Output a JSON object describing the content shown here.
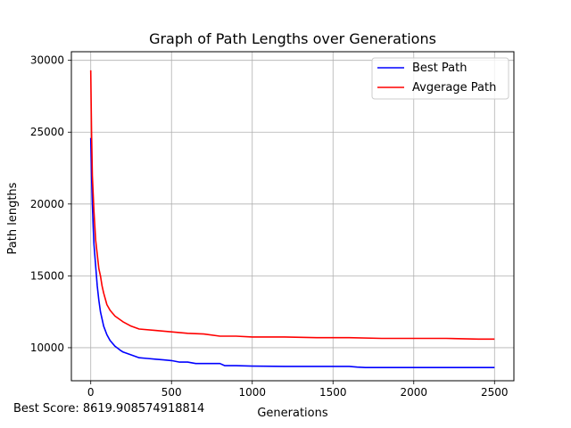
{
  "chart_data": {
    "type": "line",
    "title": "Graph of Path Lengths over Generations",
    "xlabel": "Generations",
    "ylabel": "Path lengths",
    "xlim": [
      -120,
      2620
    ],
    "ylim": [
      7700,
      30600
    ],
    "xticks": [
      0,
      500,
      1000,
      1500,
      2000,
      2500
    ],
    "yticks": [
      10000,
      15000,
      20000,
      25000,
      30000
    ],
    "grid": true,
    "legend_position": "top-right",
    "series": [
      {
        "name": "Best Path",
        "color": "#0000ff",
        "x": [
          0,
          5,
          10,
          15,
          20,
          30,
          40,
          50,
          60,
          80,
          100,
          120,
          150,
          180,
          200,
          250,
          300,
          350,
          400,
          450,
          500,
          550,
          600,
          650,
          700,
          750,
          800,
          830,
          900,
          1000,
          1200,
          1400,
          1600,
          1650,
          1700,
          2000,
          2500
        ],
        "y": [
          24600,
          22000,
          20000,
          18500,
          17200,
          15700,
          14300,
          13300,
          12500,
          11500,
          10900,
          10500,
          10100,
          9850,
          9700,
          9500,
          9300,
          9250,
          9200,
          9150,
          9100,
          9000,
          9000,
          8900,
          8900,
          8900,
          8900,
          8750,
          8750,
          8720,
          8700,
          8700,
          8700,
          8650,
          8620,
          8620,
          8620
        ]
      },
      {
        "name": "Avgerage Path",
        "color": "#ff0000",
        "x": [
          0,
          5,
          10,
          20,
          30,
          40,
          50,
          60,
          70,
          80,
          100,
          120,
          150,
          200,
          250,
          300,
          400,
          500,
          600,
          700,
          800,
          900,
          1000,
          1200,
          1400,
          1600,
          1800,
          2000,
          2200,
          2400,
          2500
        ],
        "y": [
          29300,
          25000,
          22000,
          19500,
          17500,
          16500,
          15500,
          15000,
          14300,
          13800,
          13000,
          12600,
          12200,
          11800,
          11500,
          11300,
          11200,
          11100,
          11000,
          10950,
          10800,
          10800,
          10750,
          10750,
          10700,
          10700,
          10650,
          10650,
          10650,
          10600,
          10600
        ]
      }
    ]
  },
  "footnote": "Best Score: 8619.908574918814"
}
